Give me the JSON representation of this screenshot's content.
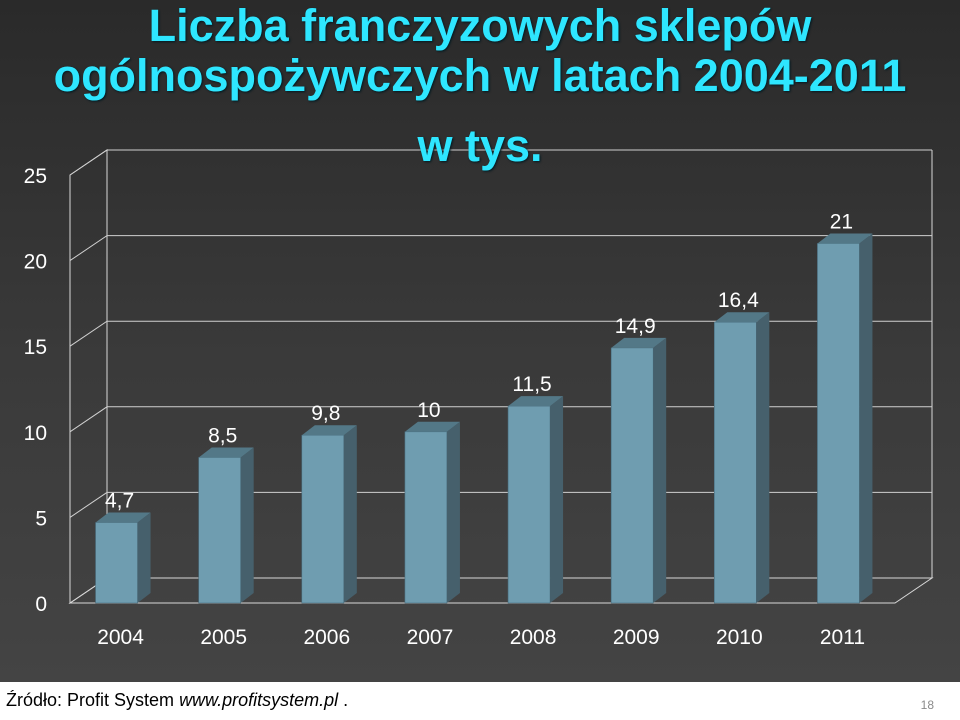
{
  "title": {
    "line1": "Liczba franczyzowych sklepów",
    "line2": "ogólnospożywczych w latach 2004-2011",
    "line3": "w tys."
  },
  "chart_data": {
    "type": "bar",
    "categories": [
      "2004",
      "2005",
      "2006",
      "2007",
      "2008",
      "2009",
      "2010",
      "2011"
    ],
    "values": [
      4.7,
      8.5,
      9.8,
      10,
      11.5,
      14.9,
      16.4,
      21
    ],
    "data_labels": [
      "4,7",
      "8,5",
      "9,8",
      "10",
      "11,5",
      "14,9",
      "16,4",
      "21"
    ],
    "yticks": [
      0,
      5,
      10,
      15,
      20,
      25
    ],
    "ylim": [
      0,
      25
    ],
    "grid": true,
    "legend": "none",
    "bar_color": "#6f9db0"
  },
  "footer": {
    "source": "Źródło: Profit System ",
    "url": "www.profitsystem.pl",
    "suffix": " .",
    "page": "18"
  }
}
